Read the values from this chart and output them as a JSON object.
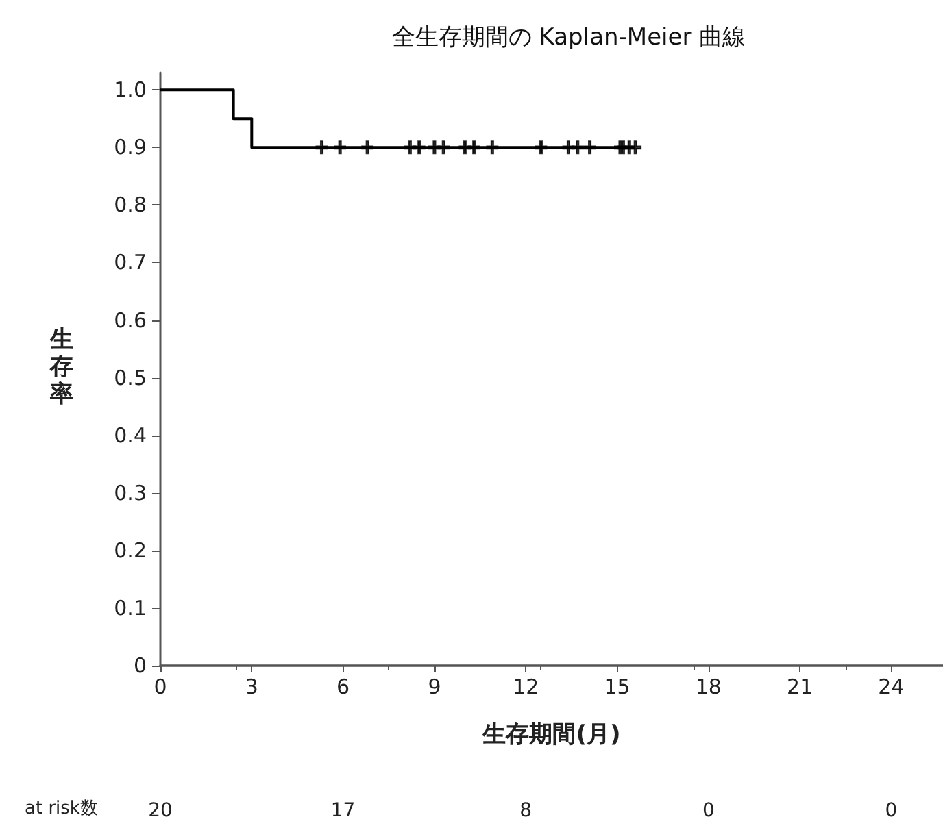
{
  "chart_data": {
    "type": "step",
    "title": "全生存期間の Kaplan-Meier 曲線",
    "xlabel": "生存期間(月)",
    "ylabel": "生存率",
    "series": [
      {
        "color": "#000000",
        "x": [
          0,
          2.4,
          3.0,
          15.6
        ],
        "values": [
          1.0,
          0.95,
          0.9,
          0.9
        ]
      },
      {
        "type": "scatter",
        "color": "#000000",
        "marker": "cross",
        "x": [
          5.3,
          5.9,
          6.8,
          8.2,
          8.5,
          9.0,
          9.3,
          10.0,
          10.3,
          10.9,
          12.5,
          13.4,
          13.7,
          14.1,
          15.1,
          15.2,
          15.4,
          15.6
        ],
        "values": [
          0.9,
          0.9,
          0.9,
          0.9,
          0.9,
          0.9,
          0.9,
          0.9,
          0.9,
          0.9,
          0.9,
          0.9,
          0.9,
          0.9,
          0.9,
          0.9,
          0.9,
          0.9
        ]
      }
    ],
    "xlim": [
      0,
      25.7
    ],
    "xticks": [
      0,
      3,
      6,
      9,
      12,
      15,
      18,
      21,
      24
    ],
    "ylim": [
      0,
      1.03
    ],
    "yticks": [
      0,
      0.1,
      0.2,
      0.3,
      0.4,
      0.5,
      0.6,
      0.7,
      0.8,
      0.9,
      {
        "value": 1,
        "label": "1.0"
      }
    ],
    "grid": false,
    "annotations": [
      "at risk数",
      "20",
      "17",
      "8",
      "0",
      "0"
    ]
  }
}
